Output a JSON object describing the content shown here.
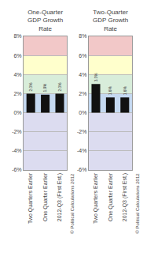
{
  "chart_data": [
    {
      "type": "bar",
      "title": "One-Quarter\nGDP Growth\nRate",
      "categories": [
        "Two Quarters Earlier",
        "One Quarter Earlier",
        "2012-Q3 (First Est.)"
      ],
      "values": [
        2.0,
        1.9,
        2.0
      ],
      "value_labels": [
        "2.0%",
        "1.9%",
        "2.0%"
      ],
      "data_labels": true,
      "color": "#111111",
      "ylim": [
        -6,
        8
      ],
      "yticks": [
        {
          "value": -6,
          "label": "-6%"
        },
        {
          "value": -4,
          "label": "-4%"
        },
        {
          "value": -2,
          "label": "-2%"
        },
        {
          "value": 0,
          "label": "0%"
        },
        {
          "value": 2,
          "label": "2%"
        },
        {
          "value": 4,
          "label": "4%"
        },
        {
          "value": 6,
          "label": "6%"
        },
        {
          "value": 8,
          "label": "8%"
        }
      ],
      "grid": true,
      "bands": [
        {
          "from": -6,
          "to": 0,
          "color": "#dcdcf0"
        },
        {
          "from": 0,
          "to": 2,
          "color": "#c5d9f1"
        },
        {
          "from": 2,
          "to": 4,
          "color": "#d8edda"
        },
        {
          "from": 4,
          "to": 6,
          "color": "#ffffcc"
        },
        {
          "from": 6,
          "to": 8,
          "color": "#f2c8c8"
        }
      ],
      "annotation": "© Political Calculations 2012"
    },
    {
      "type": "bar",
      "title": "Two-Quarter\nGDP Growth\nRate",
      "categories": [
        "Two Quarters Earlier",
        "One Quarter Earlier",
        "2012-Q3 (First Est.)"
      ],
      "values": [
        3.0,
        1.6,
        1.6
      ],
      "value_labels": [
        "3.0%",
        "1.6%",
        "1.6%"
      ],
      "data_labels": true,
      "color": "#111111",
      "ylim": [
        -6,
        8
      ],
      "yticks": [
        {
          "value": -6,
          "label": "-6%"
        },
        {
          "value": -4,
          "label": "-4%"
        },
        {
          "value": -2,
          "label": "-2%"
        },
        {
          "value": 0,
          "label": "0%"
        },
        {
          "value": 2,
          "label": "2%"
        },
        {
          "value": 4,
          "label": "4%"
        },
        {
          "value": 6,
          "label": "6%"
        },
        {
          "value": 8,
          "label": "8%"
        }
      ],
      "grid": true,
      "bands": [
        {
          "from": -6,
          "to": 0,
          "color": "#dcdcf0"
        },
        {
          "from": 0,
          "to": 2,
          "color": "#c5d9f1"
        },
        {
          "from": 2,
          "to": 4,
          "color": "#d8edda"
        },
        {
          "from": 4,
          "to": 6,
          "color": "#ffffcc"
        },
        {
          "from": 6,
          "to": 8,
          "color": "#f2c8c8"
        }
      ],
      "annotation": "© Political Calculations 2012"
    }
  ]
}
